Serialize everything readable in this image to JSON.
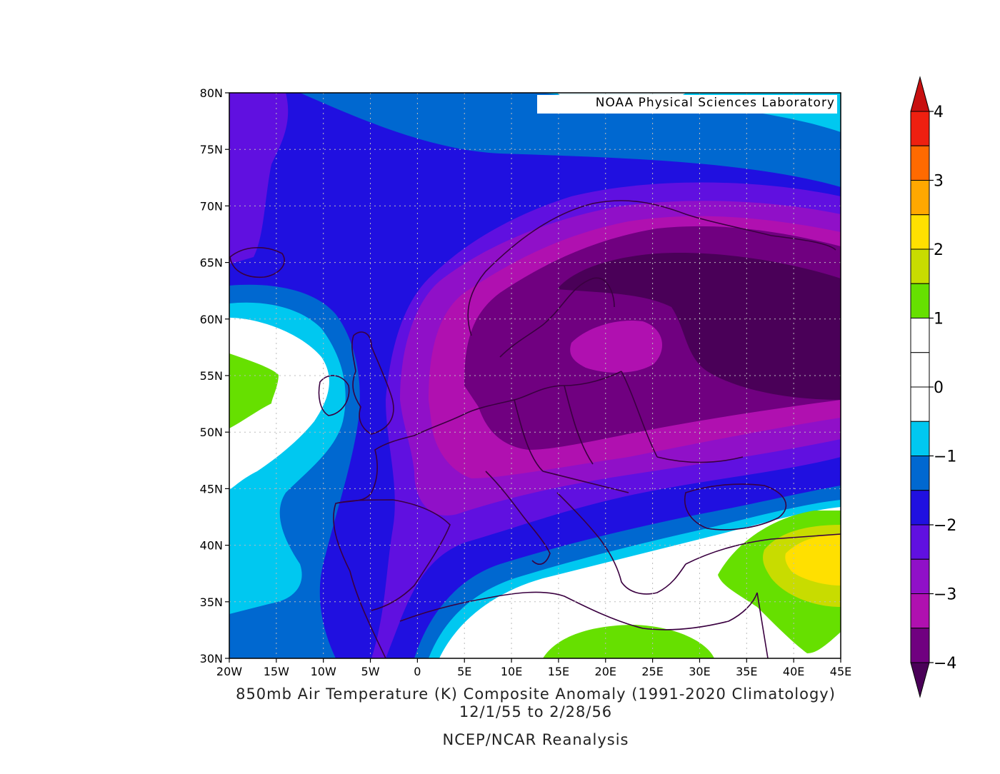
{
  "map": {
    "title": "850mb Air Temperature (K) Composite Anomaly (1991-2020 Climatology)",
    "dates": "12/1/55  to 2/28/56",
    "source": "NCEP/NCAR Reanalysis",
    "credit": "NOAA Physical Sciences Laboratory",
    "lon_range": [
      -20,
      45
    ],
    "lat_range": [
      30,
      80
    ],
    "x_ticks": [
      "20W",
      "15W",
      "10W",
      "5W",
      "0",
      "5E",
      "10E",
      "15E",
      "20E",
      "25E",
      "30E",
      "35E",
      "40E",
      "45E"
    ],
    "y_ticks": [
      "30N",
      "35N",
      "40N",
      "45N",
      "50N",
      "55N",
      "60N",
      "65N",
      "70N",
      "75N",
      "80N"
    ],
    "grid": true
  },
  "colorbar": {
    "labels": [
      "4",
      "3",
      "2",
      "1",
      "0",
      "−1",
      "−2",
      "−3",
      "−4"
    ],
    "bands": [
      {
        "from": 3.5,
        "to": 4.0,
        "color": "#ee2010"
      },
      {
        "from": 3.0,
        "to": 3.5,
        "color": "#ff6a00"
      },
      {
        "from": 2.5,
        "to": 3.0,
        "color": "#ffa800"
      },
      {
        "from": 2.0,
        "to": 2.5,
        "color": "#ffe000"
      },
      {
        "from": 1.5,
        "to": 2.0,
        "color": "#c8dc00"
      },
      {
        "from": 1.0,
        "to": 1.5,
        "color": "#66e000"
      },
      {
        "from": 0.5,
        "to": 1.0,
        "color": "#ffffff"
      },
      {
        "from": 0.0,
        "to": 0.5,
        "color": "#ffffff"
      },
      {
        "from": -0.5,
        "to": 0.0,
        "color": "#ffffff"
      },
      {
        "from": -1.0,
        "to": -0.5,
        "color": "#00c8f0"
      },
      {
        "from": -1.5,
        "to": -1.0,
        "color": "#0068d0"
      },
      {
        "from": -2.0,
        "to": -1.5,
        "color": "#2010e0"
      },
      {
        "from": -2.5,
        "to": -2.0,
        "color": "#6010e0"
      },
      {
        "from": -3.0,
        "to": -2.5,
        "color": "#9010c8"
      },
      {
        "from": -3.5,
        "to": -3.0,
        "color": "#b010b0"
      },
      {
        "from": -4.0,
        "to": -3.5,
        "color": "#700080"
      }
    ],
    "over_color": "#c81010",
    "under_color": "#4a0058"
  },
  "colors": {
    "deepest": "#4a0058",
    "coast": "#3a0040"
  }
}
